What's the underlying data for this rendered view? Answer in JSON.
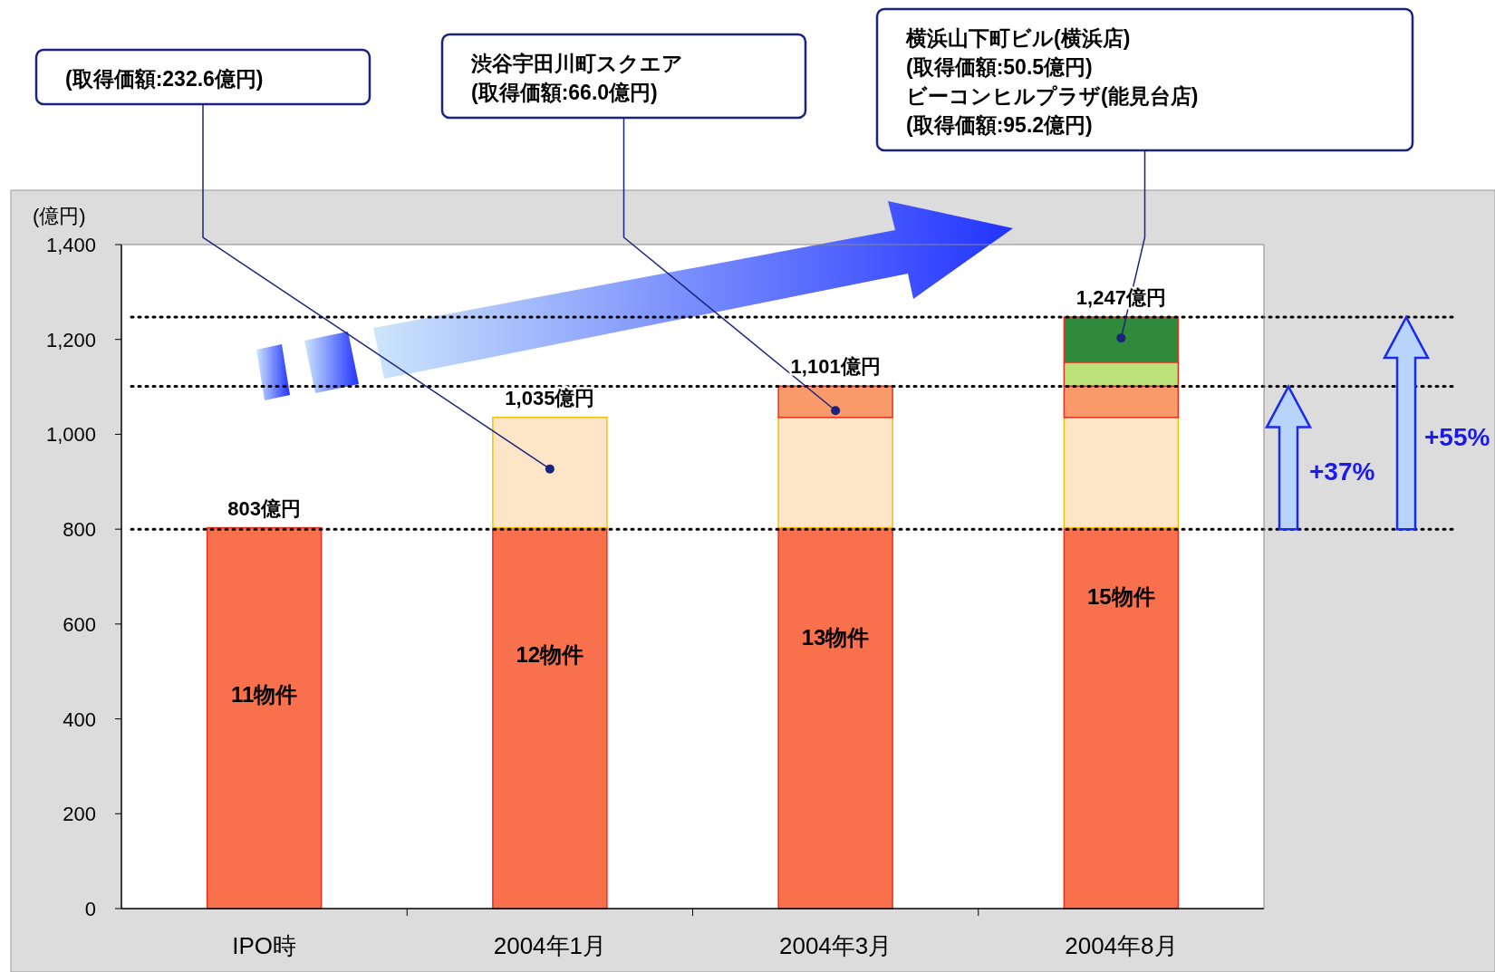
{
  "chart_data": {
    "type": "bar",
    "stacked": true,
    "ylabel": "(億円)",
    "categories": [
      "IPO時",
      "2004年1月",
      "2004年3月",
      "2004年8月"
    ],
    "ylim": [
      0,
      1400
    ],
    "yticks": [
      0,
      {
        "value": 200,
        "label": "200"
      },
      {
        "value": 400,
        "label": "400"
      },
      {
        "value": 600,
        "label": "600"
      },
      {
        "value": 800,
        "label": "800"
      },
      {
        "value": 1000,
        "label": "1,000"
      },
      {
        "value": 1200,
        "label": "1,200"
      },
      {
        "value": 1400,
        "label": "1,400"
      }
    ],
    "series": [
      {
        "color": "#f8704c",
        "values": [
          803,
          803,
          803,
          803
        ]
      },
      {
        "color": "#fde6c8",
        "values": [
          null,
          232.6,
          232.6,
          232.6
        ]
      },
      {
        "color": "#f99a6a",
        "values": [
          null,
          null,
          66.0,
          66.0
        ]
      },
      {
        "color": "#bde27a",
        "values": [
          null,
          null,
          null,
          50.5
        ]
      },
      {
        "color": "#2f8a3c",
        "values": [
          null,
          null,
          null,
          95.2
        ]
      }
    ],
    "totals": [
      "803億円",
      "1,035億円",
      "1,101億円",
      "1,247億円"
    ],
    "ref_lines": [
      {
        "axis": "y",
        "value": 800,
        "line_style": "dotted"
      },
      {
        "axis": "y",
        "value": 1101,
        "line_style": "dotted"
      },
      {
        "axis": "y",
        "value": 1247,
        "line_style": "dotted"
      }
    ],
    "annotations": [
      "11物件",
      "12物件",
      "13物件",
      "15物件",
      {
        "text": "(取得価額:232.6億円)",
        "x": "2004年1月",
        "y": 927
      },
      {
        "text": "渋谷宇田川町スクエア\n(取得価額:66.0億円)",
        "x": "2004年3月",
        "y": 1050
      },
      {
        "text": "横浜山下町ビル(横浜店)\n(取得価額:50.5億円)\nビーコンヒルプラザ(能見台店)\n(取得価額:95.2億円)",
        "x": "2004年8月",
        "y": 1203
      },
      "+37%",
      "+55%"
    ],
    "grid": false
  }
}
